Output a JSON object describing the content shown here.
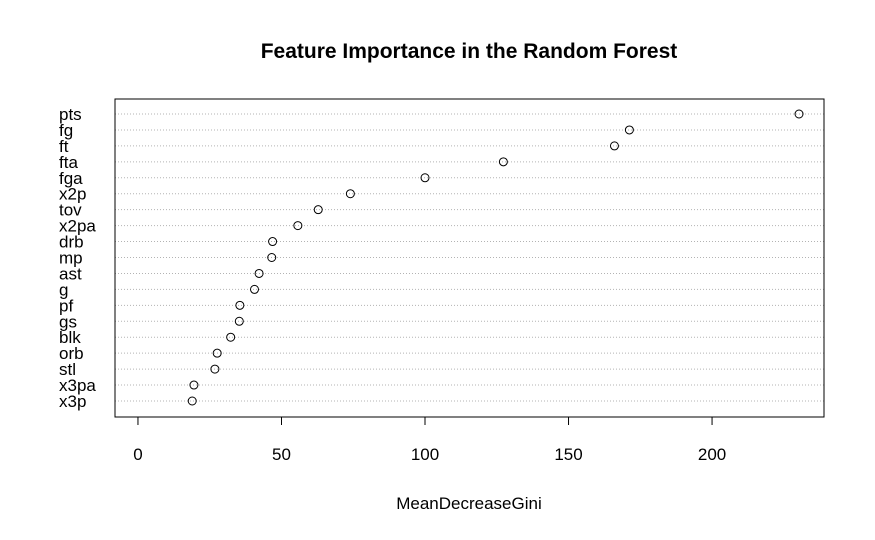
{
  "chart_data": {
    "type": "scatter",
    "title": "Feature Importance in the Random Forest",
    "xlabel": "MeanDecreaseGini",
    "ylabel": "",
    "xlim": [
      -8,
      239
    ],
    "xticks": [
      0,
      50,
      100,
      150,
      200
    ],
    "grid": "dotted horizontal guide lines",
    "categories": [
      "pts",
      "fg",
      "ft",
      "fta",
      "fga",
      "x2p",
      "tov",
      "x2pa",
      "drb",
      "mp",
      "ast",
      "g",
      "pf",
      "gs",
      "blk",
      "orb",
      "stl",
      "x3pa",
      "x3p"
    ],
    "values": [
      230.3,
      171.2,
      166.0,
      127.3,
      100.0,
      74.0,
      62.8,
      55.7,
      46.9,
      46.6,
      42.2,
      40.6,
      35.5,
      35.3,
      32.3,
      27.6,
      26.8,
      19.5,
      18.9
    ]
  }
}
